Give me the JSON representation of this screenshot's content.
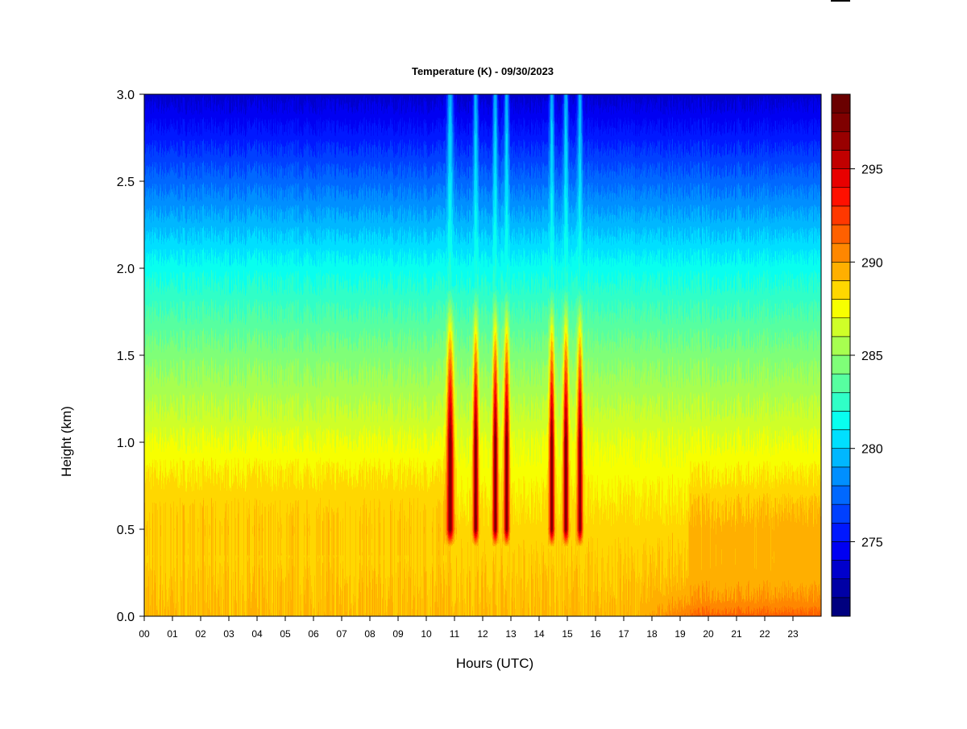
{
  "chart_data": {
    "type": "heatmap",
    "title": "Temperature (K) - 09/30/2023",
    "xlabel": "Hours (UTC)",
    "ylabel": "Height (km)",
    "xlim": [
      0,
      24
    ],
    "ylim": [
      0.0,
      3.0
    ],
    "x_ticks": [
      "00",
      "01",
      "02",
      "03",
      "04",
      "05",
      "06",
      "07",
      "08",
      "09",
      "10",
      "11",
      "12",
      "13",
      "14",
      "15",
      "16",
      "17",
      "18",
      "19",
      "20",
      "21",
      "22",
      "23"
    ],
    "y_ticks": [
      "0.0",
      "0.5",
      "1.0",
      "1.5",
      "2.0",
      "2.5",
      "3.0"
    ],
    "colorbar": {
      "range": [
        271,
        299
      ],
      "step": 1,
      "ticks": [
        "275",
        "280",
        "285",
        "290",
        "295"
      ],
      "colors": [
        "#00007f",
        "#0000a5",
        "#0000cc",
        "#0000f2",
        "#0018ff",
        "#0040ff",
        "#0068ff",
        "#008fff",
        "#00b7ff",
        "#00dfff",
        "#08ffef",
        "#30ffc7",
        "#57ffa0",
        "#7fff78",
        "#a7ff50",
        "#cfff28",
        "#f7ff00",
        "#ffd700",
        "#ffaf00",
        "#ff8700",
        "#ff6000",
        "#ff3800",
        "#ff1000",
        "#e80000",
        "#c10000",
        "#990000",
        "#7f0000",
        "#6a0000"
      ]
    },
    "field_description_k": {
      "background_profile": [
        [
          0.0,
          289.2
        ],
        [
          0.5,
          288.5
        ],
        [
          1.0,
          287.0
        ],
        [
          1.5,
          284.5
        ],
        [
          2.0,
          281.5
        ],
        [
          2.5,
          277.5
        ],
        [
          3.0,
          273.5
        ]
      ],
      "warm_plumes_hours": [
        10.85,
        11.75,
        12.45,
        12.85,
        14.45,
        14.95,
        15.45
      ],
      "plume_peak_k": 297.5,
      "evening_surface_warming_k": 291.5
    }
  }
}
